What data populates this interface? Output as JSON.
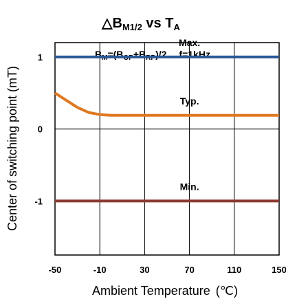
{
  "chart_data": {
    "type": "line",
    "title": {
      "main": "△B",
      "sub": "M1/2",
      "middle": " vs T",
      "sub2": "A"
    },
    "annotation": {
      "parts": [
        "B",
        "M",
        "=(B",
        "OP",
        "+B",
        "RP",
        ")/2",
        "f=1kHz"
      ]
    },
    "xlabel": "Ambient Temperature",
    "xunit": "(℃)",
    "ylabel": "Center of switching point (mT)",
    "xlim": [
      -50,
      150
    ],
    "ylim": [
      -1.75,
      1.2
    ],
    "xticks": [
      -50,
      -10,
      30,
      70,
      110,
      150
    ],
    "xtick_labels": [
      "-50",
      "-10",
      "30",
      "70",
      "110",
      "150"
    ],
    "yticks": [
      1,
      0,
      -1
    ],
    "ytick_labels": [
      "1",
      "0",
      "-1"
    ],
    "grid": true,
    "series": [
      {
        "name": "Max.",
        "color": "#2b5797",
        "x": [
          -50,
          150
        ],
        "y": [
          1.0,
          1.0
        ]
      },
      {
        "name": "Typ.",
        "color": "#e07820",
        "x": [
          -50,
          -40,
          -30,
          -20,
          -10,
          0,
          10,
          30,
          70,
          110,
          150
        ],
        "y": [
          0.5,
          0.4,
          0.3,
          0.23,
          0.2,
          0.19,
          0.19,
          0.19,
          0.19,
          0.19,
          0.19
        ]
      },
      {
        "name": "Min.",
        "color": "#8b3a32",
        "x": [
          -50,
          150
        ],
        "y": [
          -1.0,
          -1.0
        ]
      }
    ]
  }
}
